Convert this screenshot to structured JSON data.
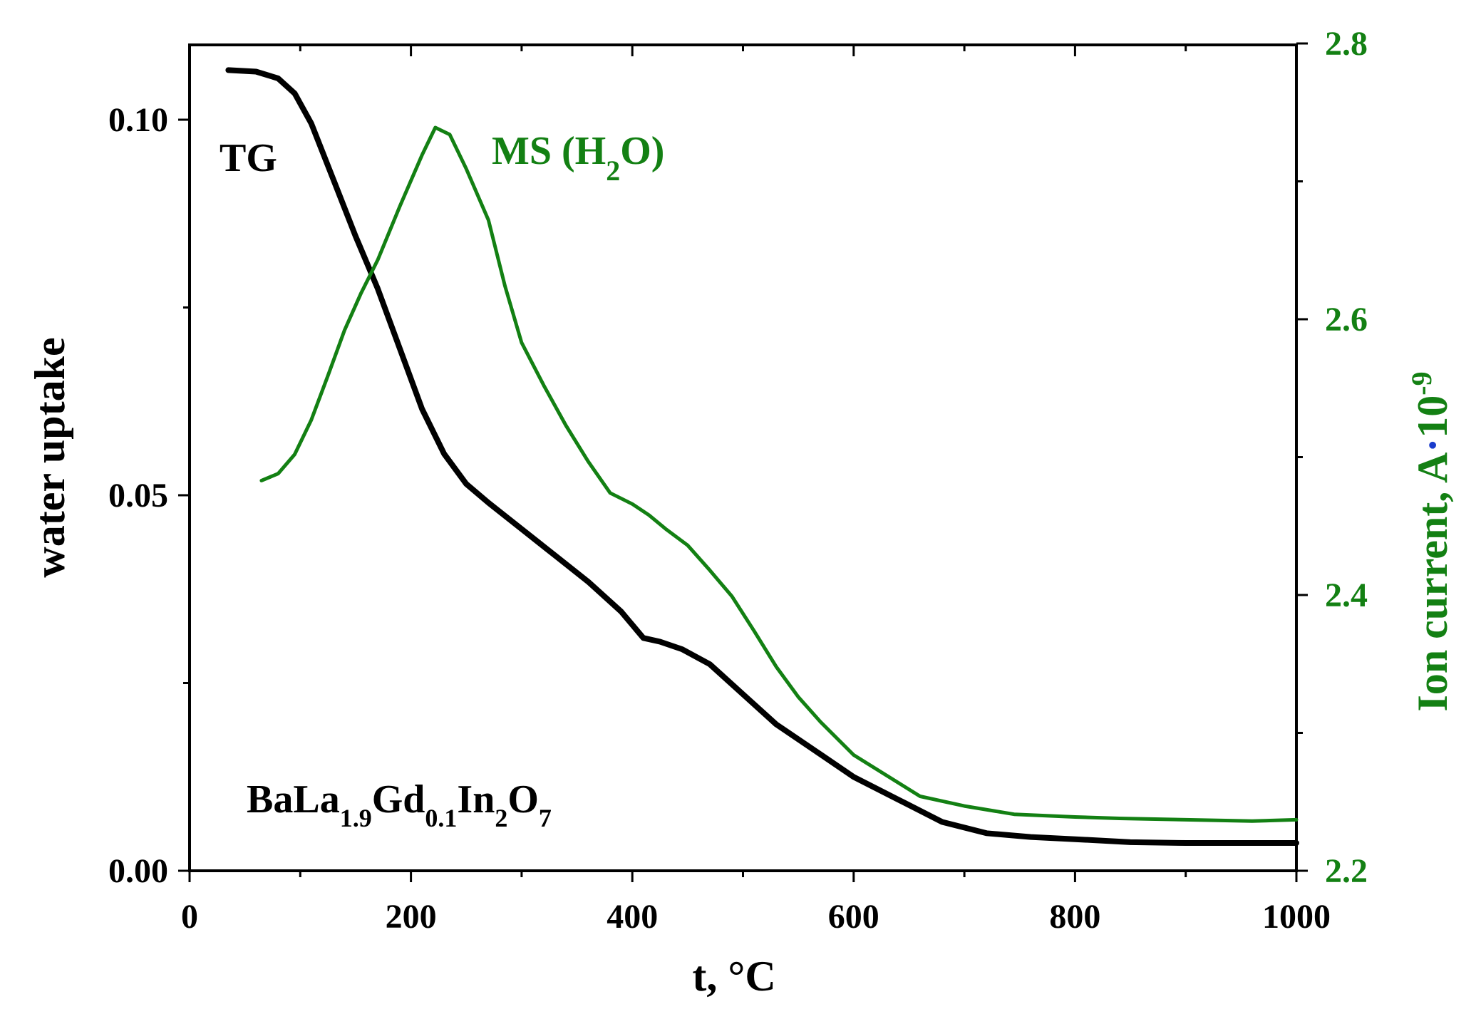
{
  "chart_data": {
    "type": "line",
    "xlabel": "t, °C",
    "ylabel_left": "water uptake",
    "ylabel_right": {
      "main": "Ion current, A",
      "dot": "·",
      "base": "10",
      "exp": "-9"
    },
    "xlim": [
      0,
      1000
    ],
    "ylim_left": [
      0,
      0.11
    ],
    "ylim_right": [
      2.2,
      2.8
    ],
    "x_ticks": [
      "0",
      "200",
      "400",
      "600",
      "800",
      "1000"
    ],
    "y_left_ticks": [
      "0.00",
      "0.05",
      "0.10"
    ],
    "y_right_ticks": [
      "2.2",
      "2.4",
      "2.6",
      "2.8"
    ],
    "grid": false,
    "sample_label": {
      "parts": [
        {
          "t": "BaLa",
          "sub": false
        },
        {
          "t": "1.9",
          "sub": true
        },
        {
          "t": "Gd",
          "sub": false
        },
        {
          "t": "0.1",
          "sub": true
        },
        {
          "t": "In",
          "sub": false
        },
        {
          "t": "2",
          "sub": true
        },
        {
          "t": "O",
          "sub": false
        },
        {
          "t": "7",
          "sub": true
        }
      ]
    },
    "series": [
      {
        "name": "TG",
        "axis": "left",
        "color": "#000000",
        "points": [
          [
            35,
            0.1066
          ],
          [
            60,
            0.1064
          ],
          [
            80,
            0.1055
          ],
          [
            95,
            0.1035
          ],
          [
            110,
            0.0995
          ],
          [
            130,
            0.092
          ],
          [
            150,
            0.0845
          ],
          [
            170,
            0.0775
          ],
          [
            190,
            0.0695
          ],
          [
            210,
            0.0615
          ],
          [
            230,
            0.0555
          ],
          [
            250,
            0.0515
          ],
          [
            270,
            0.049
          ],
          [
            300,
            0.0455
          ],
          [
            330,
            0.042
          ],
          [
            360,
            0.0385
          ],
          [
            390,
            0.0345
          ],
          [
            410,
            0.031
          ],
          [
            425,
            0.0305
          ],
          [
            445,
            0.0295
          ],
          [
            470,
            0.0275
          ],
          [
            500,
            0.0235
          ],
          [
            530,
            0.0195
          ],
          [
            570,
            0.0155
          ],
          [
            600,
            0.0125
          ],
          [
            640,
            0.0095
          ],
          [
            680,
            0.0065
          ],
          [
            720,
            0.005
          ],
          [
            760,
            0.0045
          ],
          [
            800,
            0.0042
          ],
          [
            850,
            0.0038
          ],
          [
            900,
            0.0037
          ],
          [
            950,
            0.0037
          ],
          [
            1000,
            0.0037
          ]
        ]
      },
      {
        "name": "MS (H₂O)",
        "label_parts": [
          {
            "t": "MS (H",
            "sub": false
          },
          {
            "t": "2",
            "sub": true
          },
          {
            "t": "O)",
            "sub": false
          }
        ],
        "axis": "right",
        "color": "#138013",
        "points": [
          [
            65,
            2.483
          ],
          [
            80,
            2.488
          ],
          [
            95,
            2.502
          ],
          [
            110,
            2.527
          ],
          [
            125,
            2.559
          ],
          [
            140,
            2.592
          ],
          [
            155,
            2.619
          ],
          [
            170,
            2.643
          ],
          [
            190,
            2.682
          ],
          [
            210,
            2.719
          ],
          [
            222,
            2.739
          ],
          [
            235,
            2.734
          ],
          [
            250,
            2.709
          ],
          [
            270,
            2.672
          ],
          [
            285,
            2.624
          ],
          [
            300,
            2.583
          ],
          [
            320,
            2.552
          ],
          [
            340,
            2.523
          ],
          [
            360,
            2.497
          ],
          [
            380,
            2.474
          ],
          [
            400,
            2.466
          ],
          [
            415,
            2.458
          ],
          [
            430,
            2.448
          ],
          [
            450,
            2.436
          ],
          [
            470,
            2.418
          ],
          [
            490,
            2.399
          ],
          [
            510,
            2.374
          ],
          [
            530,
            2.348
          ],
          [
            550,
            2.326
          ],
          [
            570,
            2.308
          ],
          [
            600,
            2.284
          ],
          [
            630,
            2.269
          ],
          [
            660,
            2.254
          ],
          [
            700,
            2.247
          ],
          [
            745,
            2.241
          ],
          [
            800,
            2.239
          ],
          [
            840,
            2.238
          ],
          [
            900,
            2.237
          ],
          [
            960,
            2.236
          ],
          [
            1000,
            2.237
          ]
        ]
      }
    ]
  }
}
